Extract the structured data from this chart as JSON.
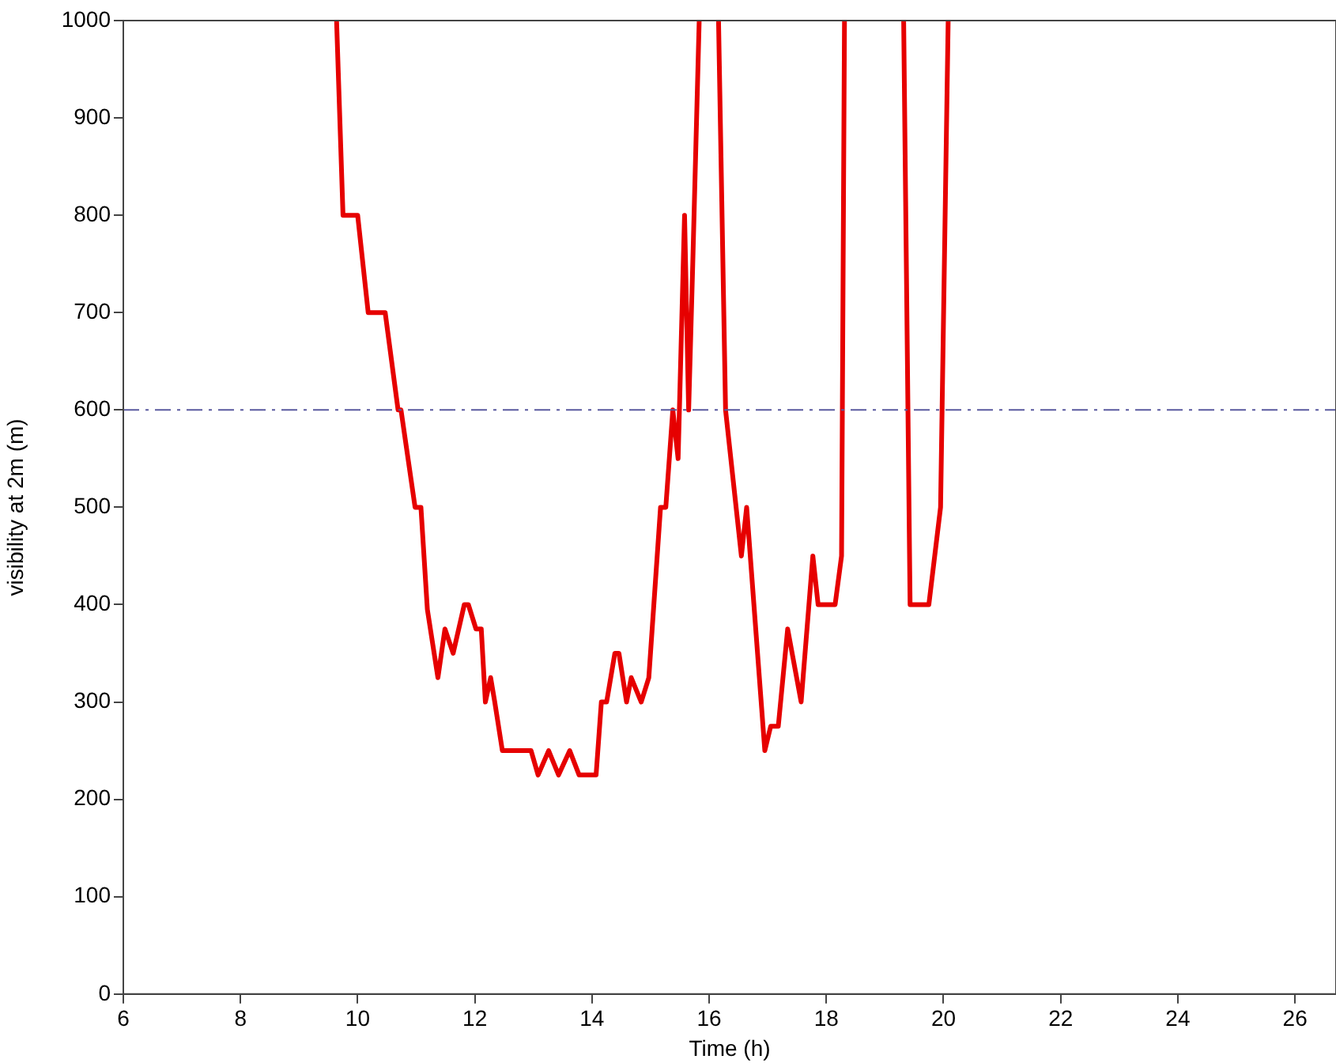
{
  "chart_data": {
    "type": "line",
    "xlabel": "Time (h)",
    "ylabel": "visibility at 2m (m)",
    "xlim": [
      6,
      26.7
    ],
    "xticks": [
      6,
      8,
      10,
      12,
      14,
      16,
      18,
      20,
      22,
      24,
      26
    ],
    "ylim": [
      0,
      1000
    ],
    "yticks": [
      0,
      100,
      200,
      300,
      400,
      500,
      600,
      700,
      800,
      900,
      1000
    ],
    "grid": false,
    "legend": false,
    "marker": "none",
    "line_style": "solid",
    "ref_lines": [
      {
        "axis": "y",
        "value": 600,
        "color": "#5a5aa0",
        "line_style": "dashed"
      }
    ],
    "series": [
      {
        "color": "#e60000",
        "x": [
          9.64,
          9.75,
          10.0,
          10.18,
          10.47,
          10.69,
          10.74,
          10.98,
          11.08,
          11.19,
          11.37,
          11.49,
          11.63,
          11.82,
          11.89,
          12.02,
          12.11,
          12.18,
          12.27,
          12.34,
          12.47,
          12.96,
          13.08,
          13.26,
          13.43,
          13.62,
          13.78,
          14.07,
          14.16,
          14.25,
          14.39,
          14.46,
          14.59,
          14.67,
          14.84,
          14.97,
          15.17,
          15.26,
          15.38,
          15.47,
          15.58,
          15.65,
          15.72,
          15.83,
          16.0,
          16.16,
          16.28,
          16.55,
          16.64,
          16.95,
          17.05,
          17.18,
          17.34,
          17.57,
          17.77,
          17.86,
          18.15,
          18.26,
          18.31,
          18.8,
          19.32,
          19.43,
          19.75,
          19.95,
          20.08
        ],
        "values": [
          1000,
          800,
          800,
          700,
          700,
          600,
          600,
          500,
          500,
          395,
          325,
          375,
          350,
          400,
          400,
          375,
          375,
          300,
          325,
          300,
          250,
          250,
          225,
          250,
          225,
          250,
          225,
          225,
          300,
          300,
          350,
          350,
          300,
          325,
          300,
          325,
          500,
          500,
          600,
          550,
          800,
          600,
          750,
          1000,
          null,
          1000,
          600,
          450,
          500,
          250,
          275,
          275,
          375,
          300,
          450,
          400,
          400,
          450,
          1000,
          null,
          1000,
          400,
          400,
          500,
          1000
        ]
      }
    ]
  }
}
